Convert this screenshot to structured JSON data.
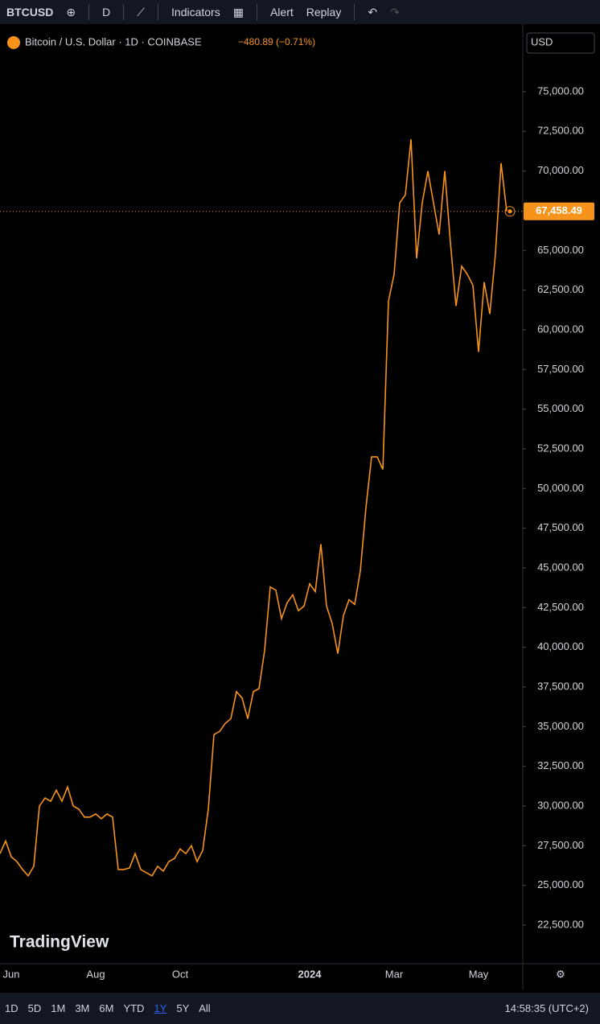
{
  "toolbar": {
    "symbol": "BTCUSD",
    "interval": "D",
    "indicators": "Indicators",
    "alert": "Alert",
    "replay": "Replay"
  },
  "legend": {
    "name": "Bitcoin / U.S. Dollar · 1D · COINBASE",
    "change": "−480.89 (−0.71%)"
  },
  "currency": "USD",
  "watermark": "TradingView",
  "ranges": [
    "1D",
    "5D",
    "1M",
    "3M",
    "6M",
    "YTD",
    "1Y",
    "5Y",
    "All"
  ],
  "clock": "14:58:35 (UTC+2)",
  "chart_data": {
    "type": "line",
    "color": "#f7931a",
    "categories": [
      null,
      null,
      "Jun",
      null,
      null,
      null,
      null,
      null,
      null,
      null,
      null,
      null,
      null,
      null,
      null,
      null,
      null,
      "Aug",
      null,
      null,
      null,
      null,
      null,
      null,
      null,
      null,
      null,
      null,
      null,
      null,
      null,
      null,
      "Oct",
      null,
      null,
      null,
      null,
      null,
      null,
      null,
      null,
      null,
      null,
      null,
      null,
      null,
      null,
      null,
      null,
      null,
      null,
      null,
      null,
      null,
      null,
      "2024",
      null,
      null,
      null,
      null,
      null,
      null,
      null,
      null,
      null,
      null,
      null,
      null,
      null,
      null,
      "Mar",
      null,
      null,
      null,
      null,
      null,
      null,
      null,
      null,
      null,
      null,
      null,
      null,
      null,
      null,
      "May",
      null,
      null,
      null,
      null,
      null
    ],
    "values": [
      27000,
      27800,
      26800,
      26500,
      26000,
      25600,
      26200,
      30000,
      30500,
      30300,
      31000,
      30300,
      31200,
      30000,
      29800,
      29300,
      29300,
      29500,
      29200,
      29500,
      29300,
      26000,
      26000,
      26100,
      27000,
      26000,
      25800,
      25600,
      26200,
      25900,
      26500,
      26700,
      27300,
      27000,
      27500,
      26500,
      27200,
      29800,
      34500,
      34700,
      35200,
      35500,
      37200,
      36800,
      35500,
      37200,
      37400,
      39800,
      43800,
      43600,
      41800,
      42800,
      43300,
      42300,
      42600,
      44000,
      43500,
      46500,
      42600,
      41500,
      39600,
      42000,
      43000,
      42700,
      44800,
      48800,
      52000,
      52000,
      51200,
      61800,
      63500,
      68000,
      68500,
      72000,
      64500,
      68000,
      70000,
      68000,
      66000,
      70000,
      65500,
      61500,
      64000,
      63500,
      62800,
      58600,
      63000,
      61000,
      64800,
      70500,
      67458.49
    ],
    "last_price": {
      "value": 67458.49,
      "label": "67,458.49"
    },
    "ylim": [
      20220,
      78850
    ],
    "yticks": [
      {
        "value": 22500,
        "label": "22,500.00"
      },
      {
        "value": 25000,
        "label": "25,000.00"
      },
      {
        "value": 27500,
        "label": "27,500.00"
      },
      {
        "value": 30000,
        "label": "30,000.00"
      },
      {
        "value": 32500,
        "label": "32,500.00"
      },
      {
        "value": 35000,
        "label": "35,000.00"
      },
      {
        "value": 37500,
        "label": "37,500.00"
      },
      {
        "value": 40000,
        "label": "40,000.00"
      },
      {
        "value": 42500,
        "label": "42,500.00"
      },
      {
        "value": 45000,
        "label": "45,000.00"
      },
      {
        "value": 47500,
        "label": "47,500.00"
      },
      {
        "value": 50000,
        "label": "50,000.00"
      },
      {
        "value": 52500,
        "label": "52,500.00"
      },
      {
        "value": 55000,
        "label": "55,000.00"
      },
      {
        "value": 57500,
        "label": "57,500.00"
      },
      {
        "value": 60000,
        "label": "60,000.00"
      },
      {
        "value": 62500,
        "label": "62,500.00"
      },
      {
        "value": 65000,
        "label": "65,000.00"
      },
      {
        "value": 67500,
        "label": "67,500.00"
      },
      {
        "value": 70000,
        "label": "70,000.00"
      },
      {
        "value": 72500,
        "label": "72,500.00"
      },
      {
        "value": 75000,
        "label": "75,000.00"
      }
    ]
  }
}
